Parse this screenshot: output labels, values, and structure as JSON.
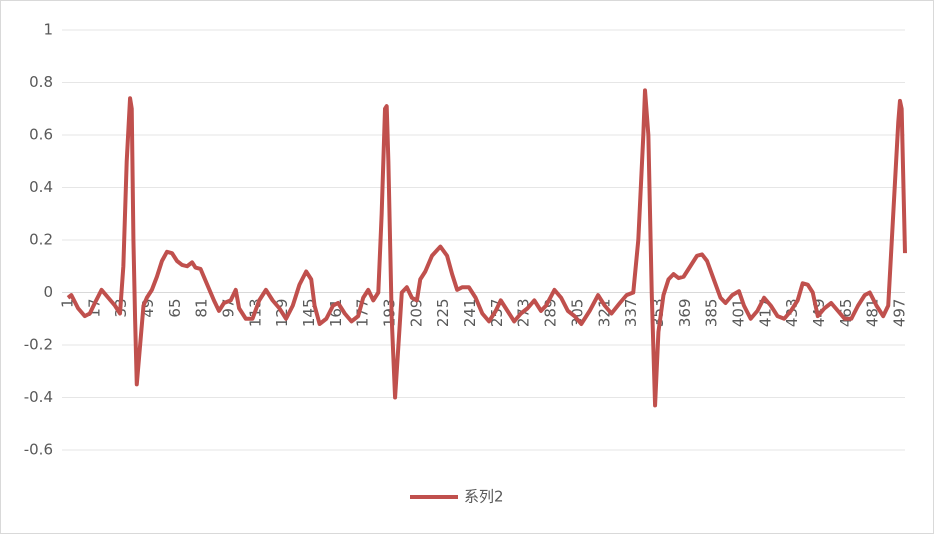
{
  "chart_data": {
    "type": "line",
    "x": [
      1,
      3,
      7,
      11,
      14,
      17,
      21,
      25,
      29,
      32,
      34,
      36,
      38,
      39,
      40,
      41,
      42,
      44,
      46,
      48,
      51,
      54,
      57,
      60,
      63,
      66,
      69,
      72,
      75,
      77,
      80,
      84,
      88,
      91,
      94,
      98,
      101,
      103,
      107,
      111,
      115,
      119,
      123,
      127,
      131,
      135,
      139,
      143,
      146,
      148,
      151,
      155,
      159,
      162,
      166,
      170,
      174,
      177,
      180,
      183,
      186,
      188,
      190,
      191,
      192,
      194,
      196,
      198,
      200,
      203,
      206,
      209,
      211,
      214,
      218,
      223,
      227,
      230,
      233,
      236,
      240,
      244,
      248,
      252,
      256,
      259,
      263,
      267,
      271,
      275,
      279,
      283,
      286,
      291,
      295,
      299,
      303,
      307,
      312,
      317,
      321,
      325,
      330,
      334,
      338,
      341,
      344,
      345,
      347,
      349,
      351,
      353,
      356,
      359,
      362,
      365,
      368,
      372,
      376,
      379,
      382,
      386,
      390,
      393,
      397,
      401,
      404,
      408,
      412,
      416,
      420,
      424,
      428,
      432,
      436,
      439,
      442,
      445,
      448,
      452,
      456,
      460,
      464,
      468,
      472,
      476,
      479,
      483,
      487,
      490,
      493,
      496,
      497,
      498,
      500
    ],
    "series": [
      {
        "name": "系列2",
        "color": "#c0504d",
        "values": [
          -0.02,
          -0.01,
          -0.06,
          -0.09,
          -0.08,
          -0.04,
          0.01,
          -0.02,
          -0.05,
          -0.08,
          0.1,
          0.5,
          0.74,
          0.7,
          0.2,
          -0.1,
          -0.35,
          -0.2,
          -0.05,
          -0.02,
          0.01,
          0.06,
          0.12,
          0.155,
          0.15,
          0.12,
          0.105,
          0.1,
          0.115,
          0.095,
          0.09,
          0.03,
          -0.03,
          -0.07,
          -0.04,
          -0.03,
          0.01,
          -0.06,
          -0.1,
          -0.1,
          -0.03,
          0.01,
          -0.03,
          -0.06,
          -0.1,
          -0.05,
          0.03,
          0.08,
          0.05,
          -0.05,
          -0.12,
          -0.1,
          -0.05,
          -0.04,
          -0.08,
          -0.11,
          -0.09,
          -0.02,
          0.01,
          -0.03,
          0.0,
          0.3,
          0.7,
          0.71,
          0.5,
          -0.1,
          -0.4,
          -0.2,
          0.0,
          0.02,
          -0.02,
          -0.03,
          0.05,
          0.08,
          0.14,
          0.175,
          0.14,
          0.07,
          0.01,
          0.02,
          0.02,
          -0.02,
          -0.08,
          -0.11,
          -0.07,
          -0.03,
          -0.07,
          -0.11,
          -0.08,
          -0.06,
          -0.03,
          -0.07,
          -0.05,
          0.01,
          -0.02,
          -0.07,
          -0.09,
          -0.12,
          -0.07,
          -0.01,
          -0.05,
          -0.08,
          -0.04,
          -0.01,
          0.0,
          0.2,
          0.6,
          0.77,
          0.6,
          0.0,
          -0.43,
          -0.15,
          -0.01,
          0.05,
          0.07,
          0.055,
          0.06,
          0.1,
          0.14,
          0.145,
          0.12,
          0.05,
          -0.02,
          -0.04,
          -0.01,
          0.005,
          -0.05,
          -0.1,
          -0.07,
          -0.02,
          -0.05,
          -0.09,
          -0.1,
          -0.07,
          -0.03,
          0.035,
          0.03,
          0.0,
          -0.09,
          -0.06,
          -0.04,
          -0.07,
          -0.1,
          -0.1,
          -0.05,
          -0.01,
          0.0,
          -0.05,
          -0.09,
          -0.05,
          0.3,
          0.65,
          0.73,
          0.7,
          0.15
        ]
      }
    ],
    "xlim": [
      1,
      500
    ],
    "xticks": [
      1,
      17,
      33,
      49,
      65,
      81,
      97,
      113,
      129,
      145,
      161,
      177,
      193,
      209,
      225,
      241,
      257,
      273,
      289,
      305,
      321,
      337,
      353,
      369,
      385,
      401,
      417,
      433,
      449,
      465,
      481,
      497
    ],
    "ylim": [
      -0.6,
      1
    ],
    "yticks": [
      -0.6,
      -0.4,
      -0.2,
      0,
      0.2,
      0.4,
      0.6,
      0.8,
      1
    ],
    "grid": true,
    "legend": "bottom"
  }
}
